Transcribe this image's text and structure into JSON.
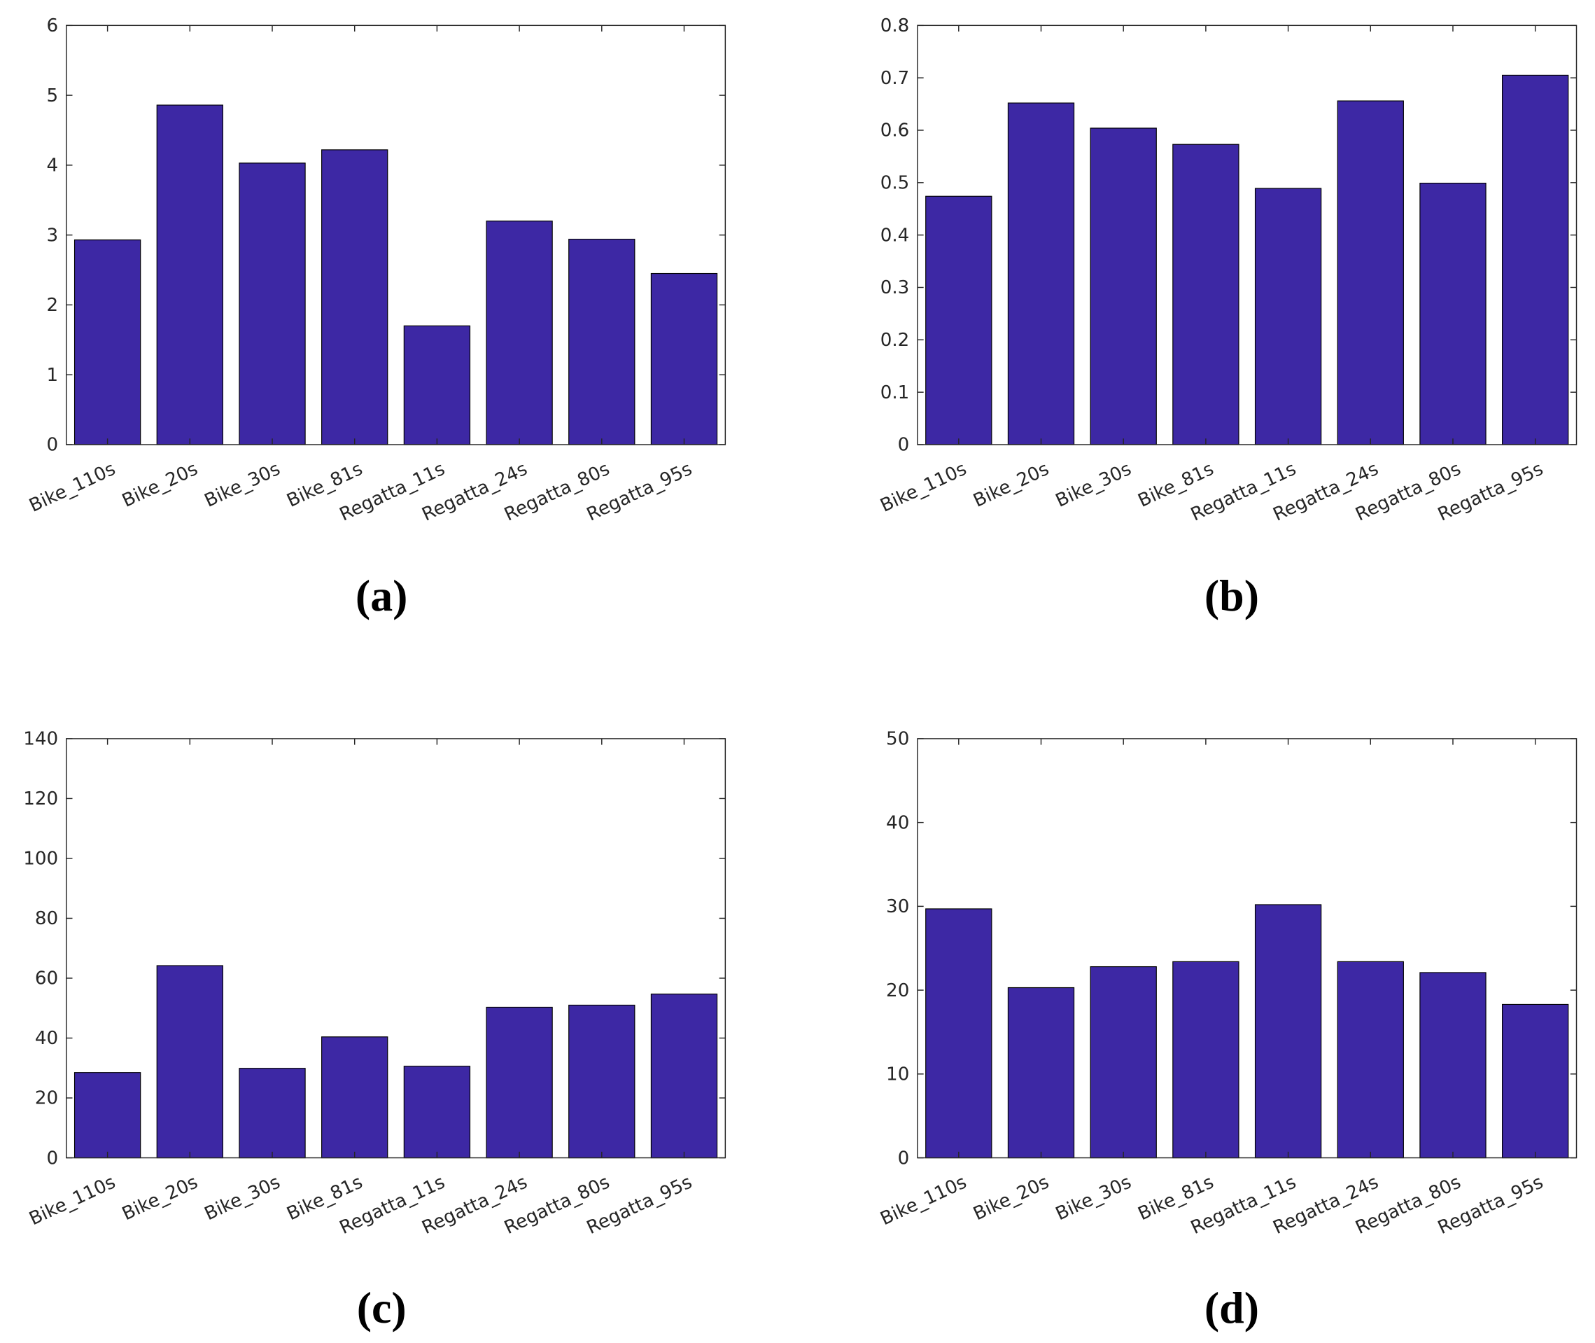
{
  "chart_data": [
    {
      "type": "bar",
      "caption": "(a)",
      "color": "#3d28a4",
      "grid": false,
      "categories": [
        "Bike_110s",
        "Bike_20s",
        "Bike_30s",
        "Bike_81s",
        "Regatta_11s",
        "Regatta_24s",
        "Regatta_80s",
        "Regatta_95s"
      ],
      "values": [
        2.93,
        4.86,
        4.03,
        4.22,
        1.7,
        3.2,
        2.94,
        2.45
      ],
      "ylim": [
        0,
        6
      ],
      "yticks": [
        0,
        1,
        2,
        3,
        4,
        5,
        6
      ]
    },
    {
      "type": "bar",
      "caption": "(b)",
      "color": "#3d28a4",
      "grid": false,
      "categories": [
        "Bike_110s",
        "Bike_20s",
        "Bike_30s",
        "Bike_81s",
        "Regatta_11s",
        "Regatta_24s",
        "Regatta_80s",
        "Regatta_95s"
      ],
      "values": [
        0.474,
        0.652,
        0.604,
        0.573,
        0.489,
        0.656,
        0.499,
        0.705
      ],
      "ylim": [
        0,
        0.8
      ],
      "yticks": [
        0,
        0.1,
        0.2,
        0.3,
        0.4,
        0.5,
        0.6,
        0.7,
        0.8
      ]
    },
    {
      "type": "bar",
      "caption": "(c)",
      "color": "#3d28a4",
      "grid": false,
      "categories": [
        "Bike_110s",
        "Bike_20s",
        "Bike_30s",
        "Bike_81s",
        "Regatta_11s",
        "Regatta_24s",
        "Regatta_80s",
        "Regatta_95s"
      ],
      "values": [
        28.5,
        64.2,
        29.9,
        40.4,
        30.6,
        50.3,
        51.0,
        54.7
      ],
      "ylim": [
        0,
        140
      ],
      "yticks": [
        0,
        20,
        40,
        60,
        80,
        100,
        120,
        140
      ]
    },
    {
      "type": "bar",
      "caption": "(d)",
      "color": "#3d28a4",
      "grid": false,
      "categories": [
        "Bike_110s",
        "Bike_20s",
        "Bike_30s",
        "Bike_81s",
        "Regatta_11s",
        "Regatta_24s",
        "Regatta_80s",
        "Regatta_95s"
      ],
      "values": [
        29.7,
        20.3,
        22.8,
        23.4,
        30.2,
        23.4,
        22.1,
        18.3
      ],
      "ylim": [
        0,
        50
      ],
      "yticks": [
        0,
        10,
        20,
        30,
        40,
        50
      ]
    }
  ]
}
